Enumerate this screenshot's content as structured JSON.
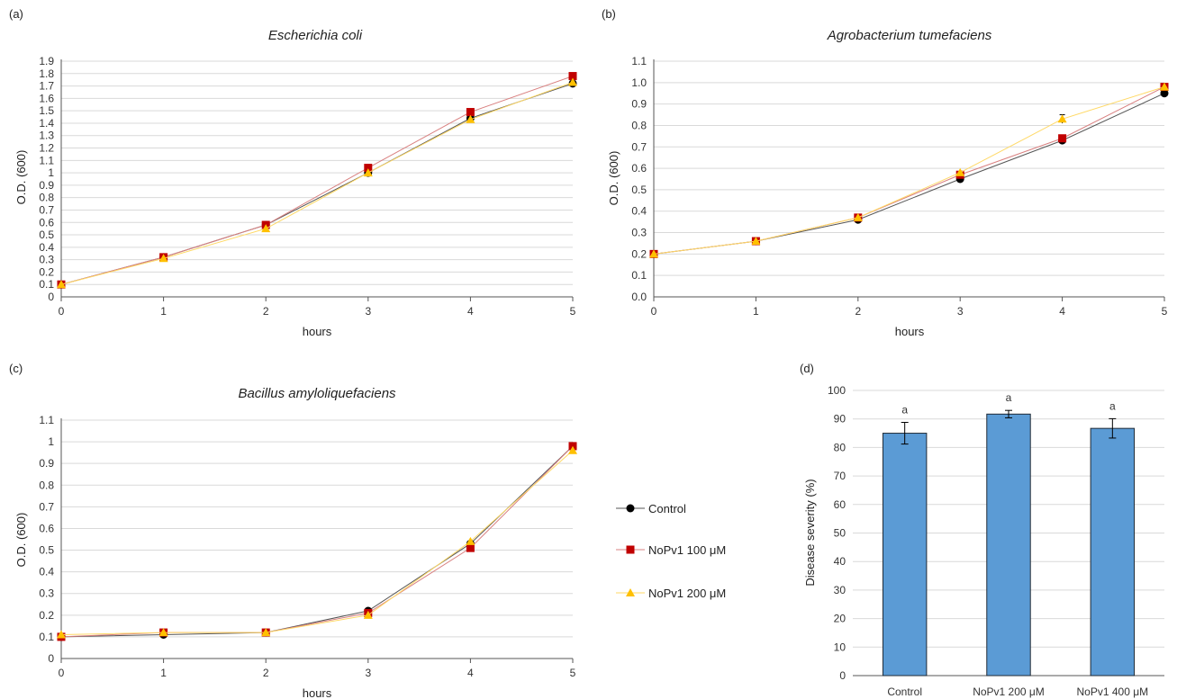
{
  "chart_data": [
    {
      "panel_label": "(a)",
      "type": "line",
      "title": "Escherichia coli",
      "xlabel": "hours",
      "ylabel": "O.D. (600)",
      "x": [
        0,
        1,
        2,
        3,
        4,
        5
      ],
      "xlim": [
        0,
        5
      ],
      "ylim": [
        0,
        1.9
      ],
      "ytick_step": 0.1,
      "ytick_labels": [
        "0",
        "0.1",
        "0.2",
        "0.3",
        "0.4",
        "0.5",
        "0.6",
        "0.7",
        "0.8",
        "0.9",
        "1",
        "1.1",
        "1.2",
        "1.3",
        "1.4",
        "1.5",
        "1.6",
        "1.7",
        "1.8",
        "1.9"
      ],
      "grid": true,
      "series": [
        {
          "name": "Control",
          "values": [
            0.1,
            0.32,
            0.58,
            1.0,
            1.44,
            1.72
          ]
        },
        {
          "name": "NoPv1 100 μM",
          "values": [
            0.1,
            0.32,
            0.58,
            1.04,
            1.49,
            1.78
          ]
        },
        {
          "name": "NoPv1 200 μM",
          "values": [
            0.1,
            0.31,
            0.55,
            1.0,
            1.43,
            1.73
          ]
        }
      ]
    },
    {
      "panel_label": "(b)",
      "type": "line",
      "title": "Agrobacterium tumefaciens",
      "xlabel": "hours",
      "ylabel": "O.D. (600)",
      "x": [
        0,
        1,
        2,
        3,
        4,
        5
      ],
      "xlim": [
        0,
        5
      ],
      "ylim": [
        0,
        1.1
      ],
      "ytick_step": 0.1,
      "ytick_labels": [
        "0.0",
        "0.1",
        "0.2",
        "0.3",
        "0.4",
        "0.5",
        "0.6",
        "0.7",
        "0.8",
        "0.9",
        "1.0",
        "1.1"
      ],
      "grid": true,
      "series": [
        {
          "name": "Control",
          "values": [
            0.2,
            0.26,
            0.36,
            0.55,
            0.73,
            0.95
          ]
        },
        {
          "name": "NoPv1 100 μM",
          "values": [
            0.2,
            0.26,
            0.37,
            0.57,
            0.74,
            0.98
          ]
        },
        {
          "name": "NoPv1 200 μM",
          "values": [
            0.2,
            0.26,
            0.37,
            0.58,
            0.83,
            0.98
          ],
          "errors": [
            0,
            0,
            0,
            0,
            0.02,
            0
          ]
        }
      ]
    },
    {
      "panel_label": "(c)",
      "type": "line",
      "title": "Bacillus amyloliquefaciens",
      "xlabel": "hours",
      "ylabel": "O.D. (600)",
      "x": [
        0,
        1,
        2,
        3,
        4,
        5
      ],
      "xlim": [
        0,
        5
      ],
      "ylim": [
        0,
        1.1
      ],
      "ytick_step": 0.1,
      "ytick_labels": [
        "0",
        "0.1",
        "0.2",
        "0.3",
        "0.4",
        "0.5",
        "0.6",
        "0.7",
        "0.8",
        "0.9",
        "1",
        "1.1"
      ],
      "grid": true,
      "series": [
        {
          "name": "Control",
          "values": [
            0.1,
            0.11,
            0.12,
            0.22,
            0.53,
            0.98
          ]
        },
        {
          "name": "NoPv1 100 μM",
          "values": [
            0.1,
            0.12,
            0.12,
            0.21,
            0.51,
            0.98
          ]
        },
        {
          "name": "NoPv1 200 μM",
          "values": [
            0.11,
            0.12,
            0.12,
            0.2,
            0.54,
            0.96
          ]
        }
      ]
    },
    {
      "panel_label": "(d)",
      "type": "bar",
      "title": "",
      "xlabel": "",
      "ylabel": "Disease severity (%)",
      "categories": [
        "Control",
        "NoPv1 200 μM",
        "NoPv1 400 μM"
      ],
      "values": [
        85,
        91.7,
        86.7
      ],
      "errors": [
        3.8,
        1.3,
        3.4
      ],
      "annotations": [
        "a",
        "a",
        "a"
      ],
      "ylim": [
        0,
        100
      ],
      "ytick_step": 10,
      "grid": true,
      "bar_color": "#5b9bd5"
    }
  ],
  "legend": {
    "placement": "right of panel (c)",
    "entries": [
      {
        "label": "Control",
        "color": "#000000",
        "marker": "circle"
      },
      {
        "label": "NoPv1 100 μM",
        "color": "#c00000",
        "marker": "square"
      },
      {
        "label": "NoPv1 200 μM",
        "color": "#ffc000",
        "marker": "triangle"
      }
    ]
  },
  "colors": {
    "control": "#000000",
    "control_line": "#555555",
    "nopv1_100": "#c00000",
    "nopv1_100_line": "#d98080",
    "nopv1_200": "#ffc000",
    "nopv1_200_line": "#ffd966",
    "grid": "#d9d9d9",
    "axis": "#555555"
  }
}
